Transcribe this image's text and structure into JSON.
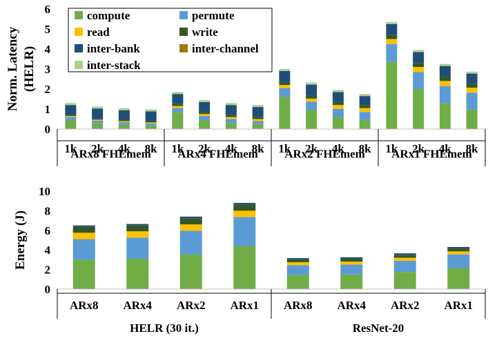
{
  "colors": {
    "compute": "#70AD47",
    "permute": "#5B9BD5",
    "read": "#FFC000",
    "write": "#375623",
    "inter-bank": "#1F4E79",
    "inter-channel": "#9C7B00",
    "inter-stack": "#A9D18E"
  },
  "chart_data": [
    {
      "type": "bar",
      "stacked": true,
      "ylabel": "Norm. Latency (HELR)",
      "ylim": [
        0,
        6
      ],
      "yticks": [
        0,
        1,
        2,
        3,
        4,
        5,
        6
      ],
      "grid": false,
      "legend": {
        "placement": "top-left",
        "entries": [
          "compute",
          "permute",
          "read",
          "write",
          "inter-bank",
          "inter-channel",
          "inter-stack"
        ]
      },
      "groups": [
        "ARx8 FHEmem",
        "ARx4 FHEmem",
        "ARx2 FHEmem",
        "ARx1 FHEmem"
      ],
      "categories": [
        "1k",
        "2k",
        "4k",
        "8k",
        "1k",
        "2k",
        "4k",
        "8k",
        "1k",
        "2k",
        "4k",
        "8k",
        "1k",
        "2k",
        "4k",
        "8k"
      ],
      "series": [
        {
          "name": "compute",
          "values": [
            0.45,
            0.3,
            0.22,
            0.18,
            0.85,
            0.45,
            0.3,
            0.25,
            1.6,
            0.95,
            0.6,
            0.45,
            3.35,
            2.0,
            1.3,
            0.97
          ]
        },
        {
          "name": "permute",
          "values": [
            0.15,
            0.12,
            0.12,
            0.1,
            0.2,
            0.2,
            0.2,
            0.15,
            0.45,
            0.42,
            0.4,
            0.4,
            0.9,
            0.85,
            0.85,
            0.85
          ]
        },
        {
          "name": "read",
          "values": [
            0.05,
            0.05,
            0.05,
            0.05,
            0.1,
            0.1,
            0.1,
            0.1,
            0.15,
            0.15,
            0.2,
            0.2,
            0.25,
            0.25,
            0.25,
            0.25
          ]
        },
        {
          "name": "write",
          "values": [
            0.05,
            0.05,
            0.05,
            0.05,
            0.1,
            0.1,
            0.1,
            0.1,
            0.15,
            0.15,
            0.15,
            0.15,
            0.2,
            0.2,
            0.2,
            0.2
          ]
        },
        {
          "name": "inter-bank",
          "values": [
            0.5,
            0.5,
            0.5,
            0.5,
            0.5,
            0.5,
            0.5,
            0.5,
            0.55,
            0.55,
            0.5,
            0.45,
            0.55,
            0.55,
            0.55,
            0.5
          ]
        },
        {
          "name": "inter-channel",
          "values": [
            0,
            0,
            0,
            0,
            0,
            0,
            0,
            0,
            0,
            0,
            0,
            0,
            0,
            0,
            0,
            0
          ]
        },
        {
          "name": "inter-stack",
          "values": [
            0.1,
            0.1,
            0.1,
            0.1,
            0.1,
            0.1,
            0.1,
            0.1,
            0.1,
            0.1,
            0.1,
            0.1,
            0.1,
            0.1,
            0.1,
            0.1
          ]
        }
      ]
    },
    {
      "type": "bar",
      "stacked": true,
      "ylabel": "Energy (J)",
      "ylim": [
        0,
        10
      ],
      "yticks": [
        0,
        2,
        4,
        6,
        8,
        10
      ],
      "grid": false,
      "groups": [
        "HELR (30 it.)",
        "ResNet-20"
      ],
      "categories": [
        "ARx8",
        "ARx4",
        "ARx2",
        "ARx1",
        "ARx8",
        "ARx4",
        "ARx2",
        "ARx1"
      ],
      "series": [
        {
          "name": "compute",
          "values": [
            3.0,
            3.1,
            3.55,
            4.4,
            1.45,
            1.5,
            1.75,
            2.15
          ]
        },
        {
          "name": "permute",
          "values": [
            2.1,
            2.15,
            2.4,
            2.95,
            1.0,
            1.0,
            1.15,
            1.4
          ]
        },
        {
          "name": "read",
          "values": [
            0.65,
            0.65,
            0.65,
            0.65,
            0.3,
            0.3,
            0.3,
            0.3
          ]
        },
        {
          "name": "write",
          "values": [
            0.6,
            0.6,
            0.6,
            0.6,
            0.3,
            0.3,
            0.3,
            0.3
          ]
        },
        {
          "name": "inter-bank",
          "values": [
            0.15,
            0.15,
            0.2,
            0.2,
            0.12,
            0.15,
            0.15,
            0.15
          ]
        },
        {
          "name": "inter-channel",
          "values": [
            0,
            0,
            0,
            0,
            0,
            0,
            0,
            0
          ]
        },
        {
          "name": "inter-stack",
          "values": [
            0,
            0,
            0,
            0,
            0,
            0,
            0,
            0
          ]
        }
      ]
    }
  ]
}
